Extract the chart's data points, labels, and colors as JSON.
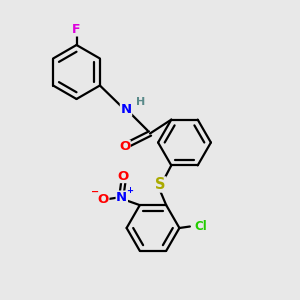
{
  "bg_color": "#e8e8e8",
  "atom_colors": {
    "C": "#000000",
    "H": "#5a8a8a",
    "N": "#0000ff",
    "O": "#ff0000",
    "F": "#dd00dd",
    "S": "#aaaa00",
    "Cl": "#22cc00"
  },
  "bond_color": "#000000",
  "bond_width": 1.6,
  "font_size_atom": 8.5
}
